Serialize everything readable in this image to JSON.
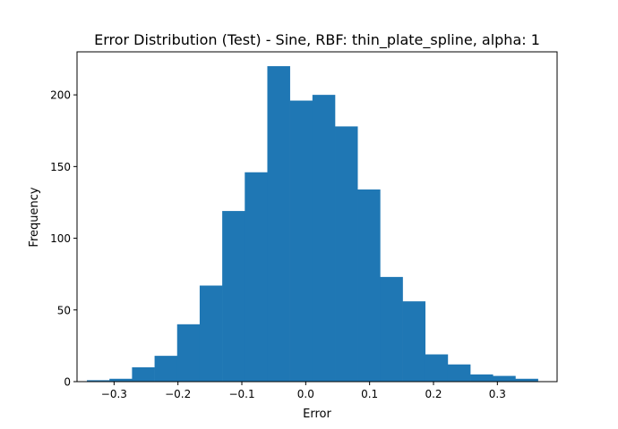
{
  "chart_data": {
    "type": "bar",
    "title": "Error Distribution (Test) - Sine, RBF: thin_plate_spline, alpha: 1",
    "xlabel": "Error",
    "ylabel": "Frequency",
    "bar_color": "#1f77b4",
    "xlim": [
      -0.358,
      0.3935
    ],
    "ylim": [
      0,
      230
    ],
    "bin_edges": [
      -0.3425,
      -0.3072,
      -0.2719,
      -0.2366,
      -0.2013,
      -0.166,
      -0.1307,
      -0.0954,
      -0.0601,
      -0.0248,
      0.0105,
      0.0458,
      0.0811,
      0.1164,
      0.1517,
      0.187,
      0.2223,
      0.2576,
      0.2929,
      0.3282,
      0.3635
    ],
    "values": [
      1,
      2,
      10,
      18,
      40,
      67,
      119,
      146,
      220,
      196,
      200,
      178,
      134,
      73,
      56,
      19,
      12,
      5,
      4,
      2
    ],
    "x_ticks": [
      -0.3,
      -0.2,
      -0.1,
      0.0,
      0.1,
      0.2,
      0.3
    ],
    "x_tick_labels": [
      "−0.3",
      "−0.2",
      "−0.1",
      "0.0",
      "0.1",
      "0.2",
      "0.3"
    ],
    "y_ticks": [
      0,
      50,
      100,
      150,
      200
    ],
    "y_tick_labels": [
      "0",
      "50",
      "100",
      "150",
      "200"
    ],
    "grid": false,
    "legend": "none"
  }
}
